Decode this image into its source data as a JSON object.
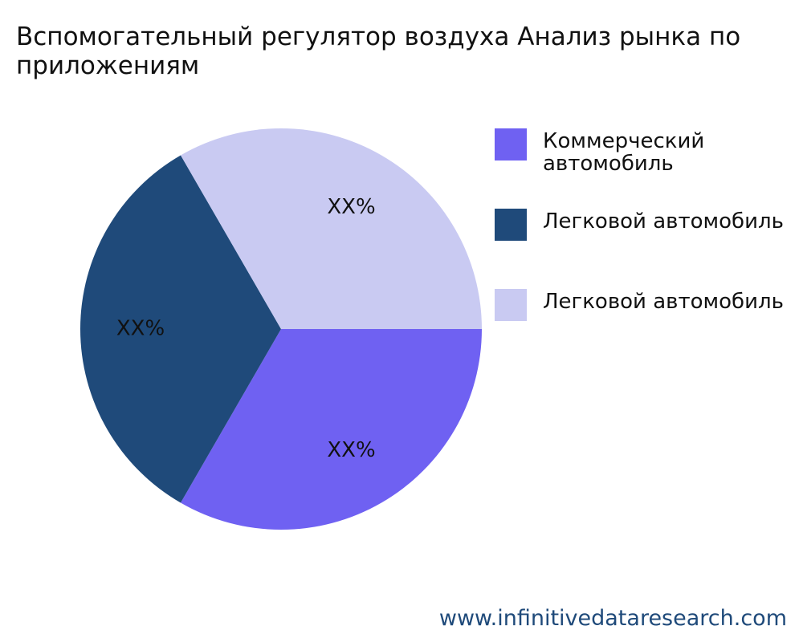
{
  "chart_data": {
    "type": "pie",
    "title": "Вспомогательный регулятор воздуха Анализ рынка по приложениям",
    "categories": [
      "Коммерческий автомобиль",
      "Легковой автомобиль",
      "Легковой автомобиль"
    ],
    "values": [
      33.3,
      33.3,
      33.3
    ],
    "value_labels": [
      "XX%",
      "XX%",
      "XX%"
    ],
    "colors": [
      "#6f61f2",
      "#1f4a7a",
      "#c9caf2"
    ],
    "legend": "right",
    "source": "www.infinitivedataresearch.com"
  }
}
